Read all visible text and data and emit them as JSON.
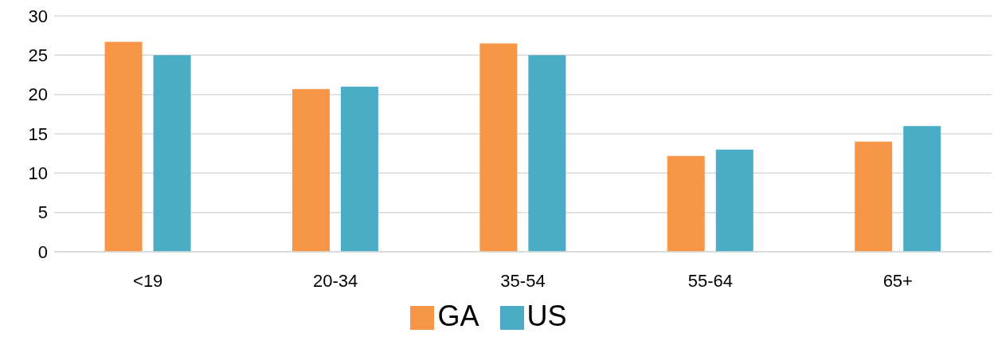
{
  "chart_data": {
    "type": "bar",
    "categories": [
      "<19",
      "20-34",
      "35-54",
      "55-64",
      "65+"
    ],
    "series": [
      {
        "name": "GA",
        "color": "#f79646",
        "values": [
          26.7,
          20.7,
          26.5,
          12.2,
          14.0
        ]
      },
      {
        "name": "US",
        "color": "#4bacc6",
        "values": [
          25,
          21,
          25,
          13,
          16
        ]
      }
    ],
    "ylim": [
      0,
      30
    ],
    "yticks": [
      0,
      5,
      10,
      15,
      20,
      25,
      30
    ],
    "grid": "y",
    "legend": "bottom"
  }
}
